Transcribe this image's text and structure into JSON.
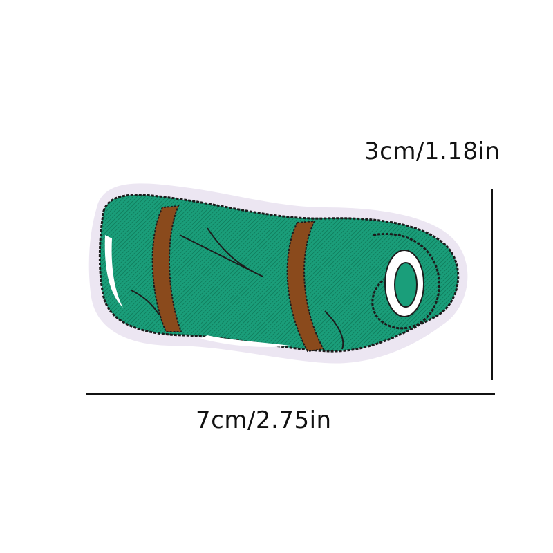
{
  "image": {
    "subject": "embroidered-sleeping-bag-patch",
    "colors": {
      "fabric_green": "#1a9e7a",
      "fabric_green_dark": "#11805f",
      "strap_brown": "#8a4a1c",
      "outline": "#1c1c1c",
      "edge_lavender": "#ece6f2",
      "highlight_white": "#ffffff"
    }
  },
  "dimensions": {
    "height_label": "3cm/1.18in",
    "width_label": "7cm/2.75in"
  }
}
